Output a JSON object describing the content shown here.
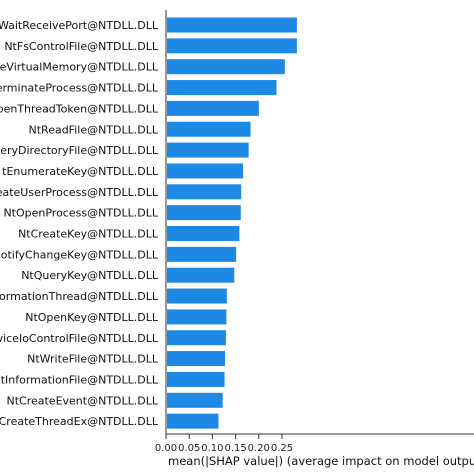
{
  "chart_data": {
    "type": "bar",
    "orientation": "horizontal",
    "title": "",
    "xlabel": "mean(|SHAP value|) (average impact on model output m",
    "ylabel": "",
    "xlim": [
      0,
      0.27
    ],
    "xticks": [
      "0.00",
      "0.05",
      "0.10",
      "0.15",
      "0.20",
      "0.25"
    ],
    "grid": false,
    "bar_color": "#1e88e5",
    "categories": [
      "WaitReceivePort@NTDLL.DLL",
      "NtFsControlFile@NTDLL.DLL",
      "eVirtualMemory@NTDLL.DLL",
      "erminateProcess@NTDLL.DLL",
      "penThreadToken@NTDLL.DLL",
      "NtReadFile@NTDLL.DLL",
      "eryDirectoryFile@NTDLL.DLL",
      "tEnumerateKey@NTDLL.DLL",
      "eateUserProcess@NTDLL.DLL",
      "NtOpenProcess@NTDLL.DLL",
      "NtCreateKey@NTDLL.DLL",
      "otifyChangeKey@NTDLL.DLL",
      "NtQueryKey@NTDLL.DLL",
      "ormationThread@NTDLL.DLL",
      "NtOpenKey@NTDLL.DLL",
      "viceIoControlFile@NTDLL.DLL",
      "NtWriteFile@NTDLL.DLL",
      "tInformationFile@NTDLL.DLL",
      "NtCreateEvent@NTDLL.DLL",
      "CreateThreadEx@NTDLL.DLL"
    ],
    "values": [
      0.28,
      0.28,
      0.254,
      0.236,
      0.198,
      0.18,
      0.176,
      0.164,
      0.16,
      0.159,
      0.156,
      0.149,
      0.145,
      0.129,
      0.128,
      0.127,
      0.125,
      0.124,
      0.12,
      0.111
    ]
  }
}
